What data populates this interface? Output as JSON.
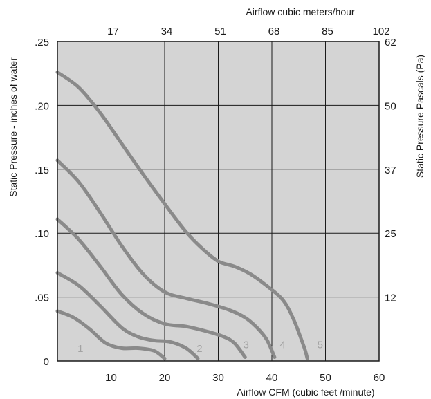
{
  "chart_data": {
    "type": "line",
    "x_top_title": "Airflow cubic meters/hour",
    "x_bottom_title": "Airflow  CFM (cubic feet /minute)",
    "y_left_title": "Static Pressure - inches of water",
    "y_right_title": "Static Pressure Pascals (Pa)",
    "xlim": [
      0,
      60
    ],
    "ylim": [
      0,
      0.25
    ],
    "grid": true,
    "plot_background": "#d4d4d4",
    "curve_color": "#8a8a8a",
    "x_bottom_ticks": [
      {
        "value": 0,
        "label": ""
      },
      {
        "value": 10,
        "label": "10"
      },
      {
        "value": 20,
        "label": "20"
      },
      {
        "value": 30,
        "label": "30"
      },
      {
        "value": 40,
        "label": "40"
      },
      {
        "value": 50,
        "label": "50"
      },
      {
        "value": 60,
        "label": "60"
      }
    ],
    "x_top_ticks": [
      {
        "value": 10,
        "label": "17"
      },
      {
        "value": 20,
        "label": "34"
      },
      {
        "value": 30,
        "label": "51"
      },
      {
        "value": 40,
        "label": "68"
      },
      {
        "value": 50,
        "label": "85"
      },
      {
        "value": 60,
        "label": "102"
      }
    ],
    "y_left_ticks": [
      {
        "value": 0,
        "label": "0"
      },
      {
        "value": 0.05,
        "label": ".05"
      },
      {
        "value": 0.1,
        "label": ".10"
      },
      {
        "value": 0.15,
        "label": ".15"
      },
      {
        "value": 0.2,
        "label": ".20"
      },
      {
        "value": 0.25,
        "label": ".25"
      }
    ],
    "y_right_ticks": [
      {
        "value": 0.05,
        "label": "12"
      },
      {
        "value": 0.1,
        "label": "25"
      },
      {
        "value": 0.15,
        "label": "37"
      },
      {
        "value": 0.2,
        "label": "50"
      },
      {
        "value": 0.25,
        "label": "62"
      }
    ],
    "series": [
      {
        "name": "1",
        "label_at": [
          4.3,
          0.007
        ],
        "points": [
          [
            0,
            0.039
          ],
          [
            3,
            0.034
          ],
          [
            6,
            0.025
          ],
          [
            9,
            0.014
          ],
          [
            12,
            0.01
          ],
          [
            15,
            0.01
          ],
          [
            18,
            0.008
          ],
          [
            20,
            0.002
          ]
        ]
      },
      {
        "name": "2",
        "label_at": [
          26.5,
          0.007
        ],
        "points": [
          [
            0,
            0.069
          ],
          [
            4,
            0.059
          ],
          [
            8,
            0.043
          ],
          [
            12,
            0.026
          ],
          [
            15,
            0.019
          ],
          [
            18,
            0.016
          ],
          [
            21,
            0.015
          ],
          [
            24,
            0.01
          ],
          [
            26.2,
            0.002
          ]
        ]
      },
      {
        "name": "3",
        "label_at": [
          35.2,
          0.01
        ],
        "points": [
          [
            0,
            0.111
          ],
          [
            4,
            0.095
          ],
          [
            8,
            0.074
          ],
          [
            12,
            0.052
          ],
          [
            16,
            0.037
          ],
          [
            20,
            0.029
          ],
          [
            24,
            0.027
          ],
          [
            28,
            0.023
          ],
          [
            31,
            0.019
          ],
          [
            33,
            0.014
          ],
          [
            35,
            0.003
          ]
        ]
      },
      {
        "name": "4",
        "label_at": [
          42.0,
          0.01
        ],
        "points": [
          [
            0,
            0.157
          ],
          [
            4,
            0.14
          ],
          [
            8,
            0.116
          ],
          [
            12,
            0.09
          ],
          [
            16,
            0.068
          ],
          [
            20,
            0.054
          ],
          [
            24,
            0.049
          ],
          [
            28,
            0.045
          ],
          [
            32,
            0.04
          ],
          [
            35,
            0.034
          ],
          [
            37,
            0.027
          ],
          [
            39,
            0.017
          ],
          [
            40.5,
            0.003
          ]
        ]
      },
      {
        "name": "5",
        "label_at": [
          49.0,
          0.01
        ],
        "points": [
          [
            0,
            0.226
          ],
          [
            4,
            0.214
          ],
          [
            8,
            0.194
          ],
          [
            12,
            0.17
          ],
          [
            16,
            0.146
          ],
          [
            20,
            0.123
          ],
          [
            24,
            0.101
          ],
          [
            27,
            0.088
          ],
          [
            30,
            0.078
          ],
          [
            33,
            0.074
          ],
          [
            36,
            0.068
          ],
          [
            39,
            0.059
          ],
          [
            42,
            0.048
          ],
          [
            44,
            0.033
          ],
          [
            46,
            0.011
          ],
          [
            46.6,
            0.002
          ]
        ]
      }
    ]
  }
}
